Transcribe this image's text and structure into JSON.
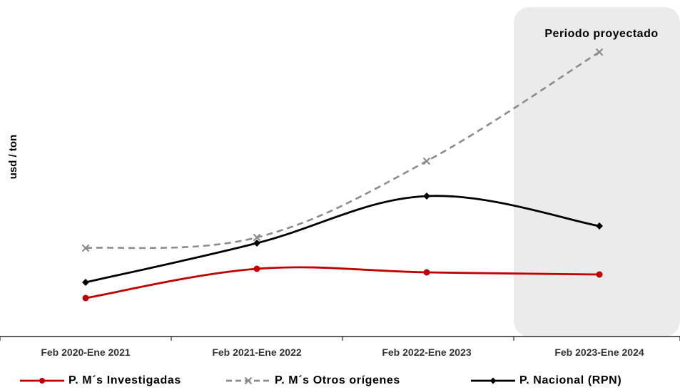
{
  "chart_data": {
    "type": "line",
    "title": "",
    "ylabel": "usd / ton",
    "xlabel": "",
    "categories": [
      "Feb 2020-Ene 2021",
      "Feb 2021-Ene 2022",
      "Feb 2022-Ene 2023",
      "Feb 2023-Ene 2024"
    ],
    "shaded_region": {
      "label": "Periodo proyectado",
      "category": "Feb 2023-Ene 2024",
      "color": "#ebebeb"
    },
    "y_axis_ticks_shown": false,
    "grid": false,
    "legend_position": "bottom",
    "series": [
      {
        "name": "P. M´s Investigadas",
        "color": "#c00000",
        "dash": "solid",
        "marker": "circle",
        "values": [
          418,
          377,
          382,
          385
        ]
      },
      {
        "name": "P. M´s Otros orígenes",
        "color": "#8c8c8c",
        "dash": "dashed",
        "marker": "x",
        "values": [
          348,
          333,
          226,
          73
        ]
      },
      {
        "name": "P. Nacional (RPN)",
        "color": "#000000",
        "dash": "solid",
        "marker": "diamond",
        "values": [
          396,
          341,
          275,
          317
        ]
      }
    ]
  }
}
